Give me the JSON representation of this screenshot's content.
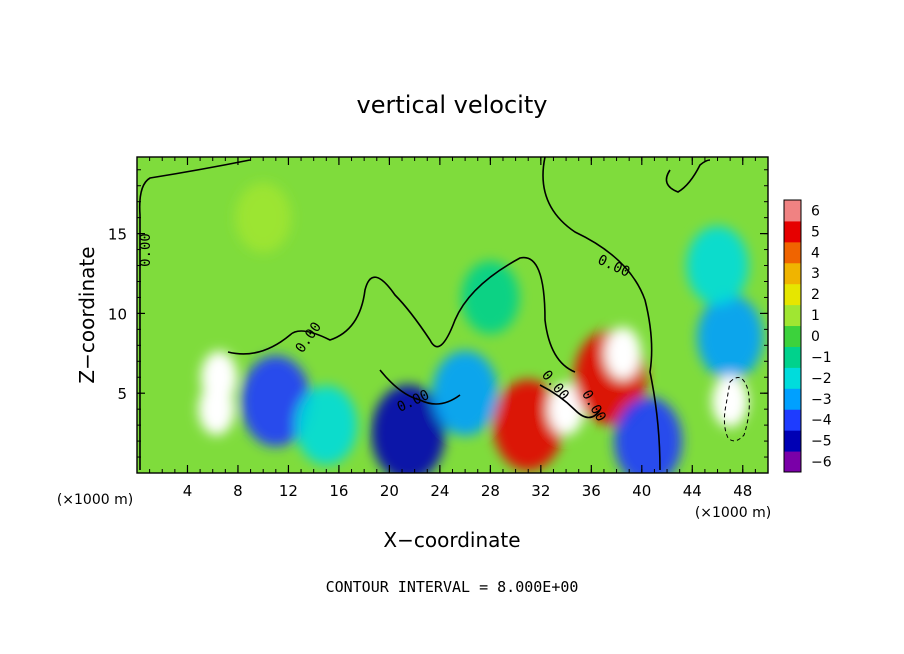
{
  "chart_data": {
    "type": "heatmap",
    "title": "vertical velocity",
    "xlabel": "X−coordinate",
    "ylabel": "Z−coordinate",
    "x_unit_left": "(×1000 m)",
    "x_unit_right": "(×1000 m)",
    "footer": "CONTOUR INTERVAL = 8.000E+00",
    "xlim": [
      0,
      50
    ],
    "ylim": [
      0,
      19.8
    ],
    "x_ticks": [
      "4",
      "8",
      "12",
      "16",
      "20",
      "24",
      "28",
      "32",
      "36",
      "40",
      "44",
      "48"
    ],
    "y_ticks": [
      "5",
      "10",
      "15"
    ],
    "contour_labels": [
      "0.00",
      "0.00",
      "0.00",
      "0.00",
      "0.00",
      "0.00"
    ],
    "colorbar": {
      "ticks": [
        "6",
        "5",
        "4",
        "3",
        "2",
        "1",
        "0",
        "−1",
        "−2",
        "−3",
        "−4",
        "−5",
        "−6"
      ],
      "min": -6,
      "max": 6,
      "colors": [
        "#7a00a8",
        "#0000b4",
        "#1e3cff",
        "#00a0ff",
        "#00dcdc",
        "#00d28c",
        "#3cd23c",
        "#a0e632",
        "#e6e600",
        "#f0b400",
        "#f06400",
        "#e60000",
        "#f08282"
      ]
    },
    "features": [
      {
        "x": 6.5,
        "z": 6.0,
        "w": 6.5
      },
      {
        "x": 6.3,
        "z": 4.0,
        "w": 14
      },
      {
        "x": 11.0,
        "z": 4.5,
        "w": -4.5
      },
      {
        "x": 15.0,
        "z": 3.0,
        "w": -2.5
      },
      {
        "x": 21.5,
        "z": 2.5,
        "w": -5.5
      },
      {
        "x": 26.0,
        "z": 5.0,
        "w": -3.5
      },
      {
        "x": 31.0,
        "z": 3.0,
        "w": 4.5
      },
      {
        "x": 34.0,
        "z": 4.0,
        "w": 8
      },
      {
        "x": 37.5,
        "z": 6.0,
        "w": 5.0
      },
      {
        "x": 38.5,
        "z": 7.5,
        "w": 9
      },
      {
        "x": 40.5,
        "z": 2.0,
        "w": -4.0
      },
      {
        "x": 47.0,
        "z": 8.5,
        "w": -3.5
      },
      {
        "x": 47.0,
        "z": 4.5,
        "w": -14
      },
      {
        "x": 28.0,
        "z": 11.0,
        "w": -1.5
      },
      {
        "x": 46.0,
        "z": 13.0,
        "w": -2.5
      },
      {
        "x": 10.0,
        "z": 16.0,
        "w": 1.0
      }
    ]
  }
}
